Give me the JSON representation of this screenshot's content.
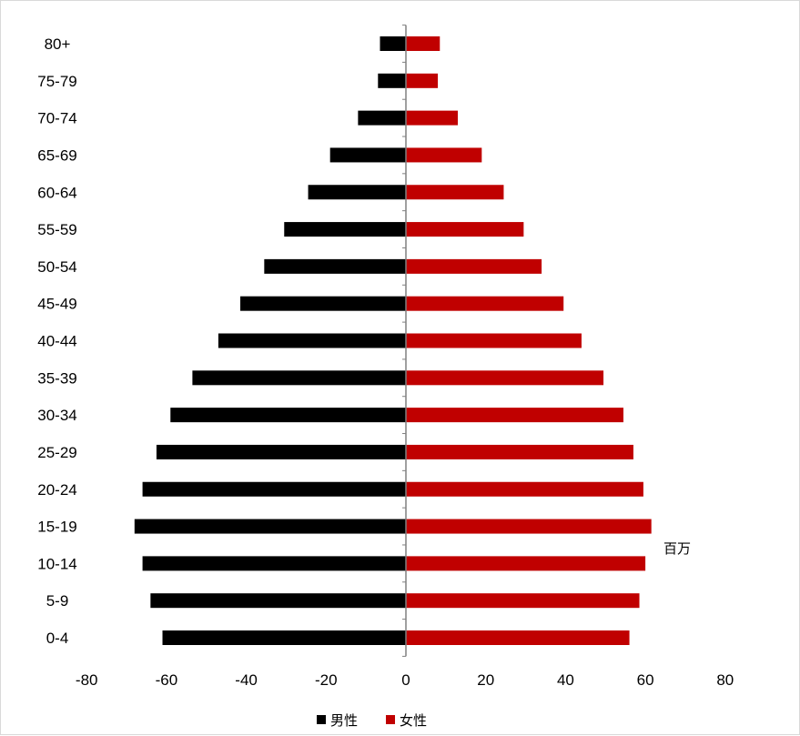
{
  "chart_data": {
    "type": "bar",
    "orientation": "horizontal",
    "categories": [
      "0-4",
      "5-9",
      "10-14",
      "15-19",
      "20-24",
      "25-29",
      "30-34",
      "35-39",
      "40-44",
      "45-49",
      "50-54",
      "55-59",
      "60-64",
      "65-69",
      "70-74",
      "75-79",
      "80+"
    ],
    "series": [
      {
        "name": "男性",
        "color": "#000000",
        "values": [
          -61,
          -64,
          -66,
          -68,
          -66,
          -62.5,
          -59,
          -53.5,
          -47,
          -41.5,
          -35.5,
          -30.5,
          -24.5,
          -19,
          -12,
          -7,
          -6.5
        ]
      },
      {
        "name": "女性",
        "color": "#c00000",
        "values": [
          56,
          58.5,
          60,
          61.5,
          59.5,
          57,
          54.5,
          49.5,
          44,
          39.5,
          34,
          29.5,
          24.5,
          19,
          13,
          8,
          8.5
        ]
      }
    ],
    "xlim": [
      -80,
      80
    ],
    "x_ticks": [
      "-80",
      "-60",
      "-40",
      "-20",
      "0",
      "20",
      "40",
      "60",
      "80"
    ],
    "unit_label": "百万",
    "legend_position": "bottom",
    "grid": false
  }
}
